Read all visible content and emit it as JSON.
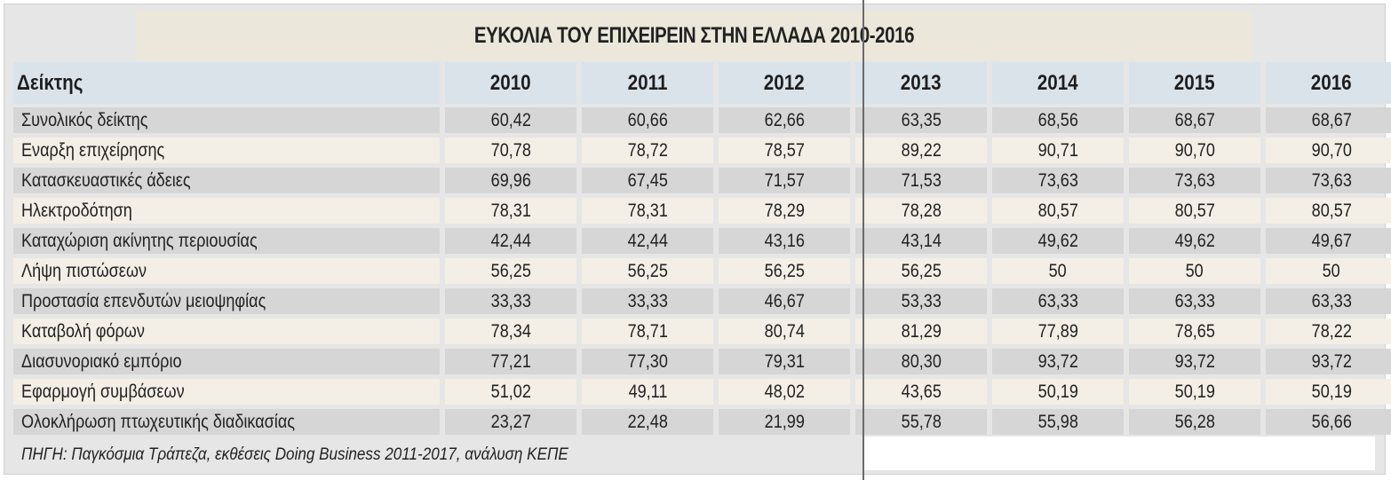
{
  "chart_data": {
    "type": "table",
    "title": "ΕΥΚΟΛΙΑ ΤΟΥ ΕΠΙΧΕΙΡΕΙΝ ΣΤΗΝ ΕΛΛΑΔΑ 2010-2016",
    "header": [
      "Δείκτης",
      "2010",
      "2011",
      "2012",
      "2013",
      "2014",
      "2015",
      "2016"
    ],
    "rows": [
      [
        "Συνολικός δείκτης",
        "60,42",
        "60,66",
        "62,66",
        "63,35",
        "68,56",
        "68,67",
        "68,67"
      ],
      [
        "Εναρξη επιχείρησης",
        "70,78",
        "78,72",
        "78,57",
        "89,22",
        "90,71",
        "90,70",
        "90,70"
      ],
      [
        "Κατασκευαστικές άδειες",
        "69,96",
        "67,45",
        "71,57",
        "71,53",
        "73,63",
        "73,63",
        "73,63"
      ],
      [
        "Ηλεκτροδότηση",
        "78,31",
        "78,31",
        "78,29",
        "78,28",
        "80,57",
        "80,57",
        "80,57"
      ],
      [
        "Καταχώριση ακίνητης περιουσίας",
        "42,44",
        "42,44",
        "43,16",
        "43,14",
        "49,62",
        "49,62",
        "49,67"
      ],
      [
        "Λήψη πιστώσεων",
        "56,25",
        "56,25",
        "56,25",
        "56,25",
        "50",
        "50",
        "50"
      ],
      [
        "Προστασία επενδυτών μειοψηφίας",
        "33,33",
        "33,33",
        "46,67",
        "53,33",
        "63,33",
        "63,33",
        "63,33"
      ],
      [
        "Καταβολή φόρων",
        "78,34",
        "78,71",
        "80,74",
        "81,29",
        "77,89",
        "78,65",
        "78,22"
      ],
      [
        "Διασυνοριακό εμπόριο",
        "77,21",
        "77,30",
        "79,31",
        "80,30",
        "93,72",
        "93,72",
        "93,72"
      ],
      [
        "Εφαρμογή συμβάσεων",
        "51,02",
        "49,11",
        "48,02",
        "43,65",
        "50,19",
        "50,19",
        "50,19"
      ],
      [
        "Ολοκλήρωση πτωχευτικής διαδικασίας",
        "23,27",
        "22,48",
        "21,99",
        "55,78",
        "55,98",
        "56,28",
        "56,66"
      ]
    ],
    "source": "ΠΗΓΗ: Παγκόσμια Τράπεζα, εκθέσεις Doing Business 2011-2017, ανάλυση ΚΕΠΕ"
  },
  "colors": {
    "title_bg": "#ebe8db",
    "header_bg": "#dbe3ea",
    "row_odd": "#d6d6d6",
    "row_even": "#f3efe6"
  }
}
